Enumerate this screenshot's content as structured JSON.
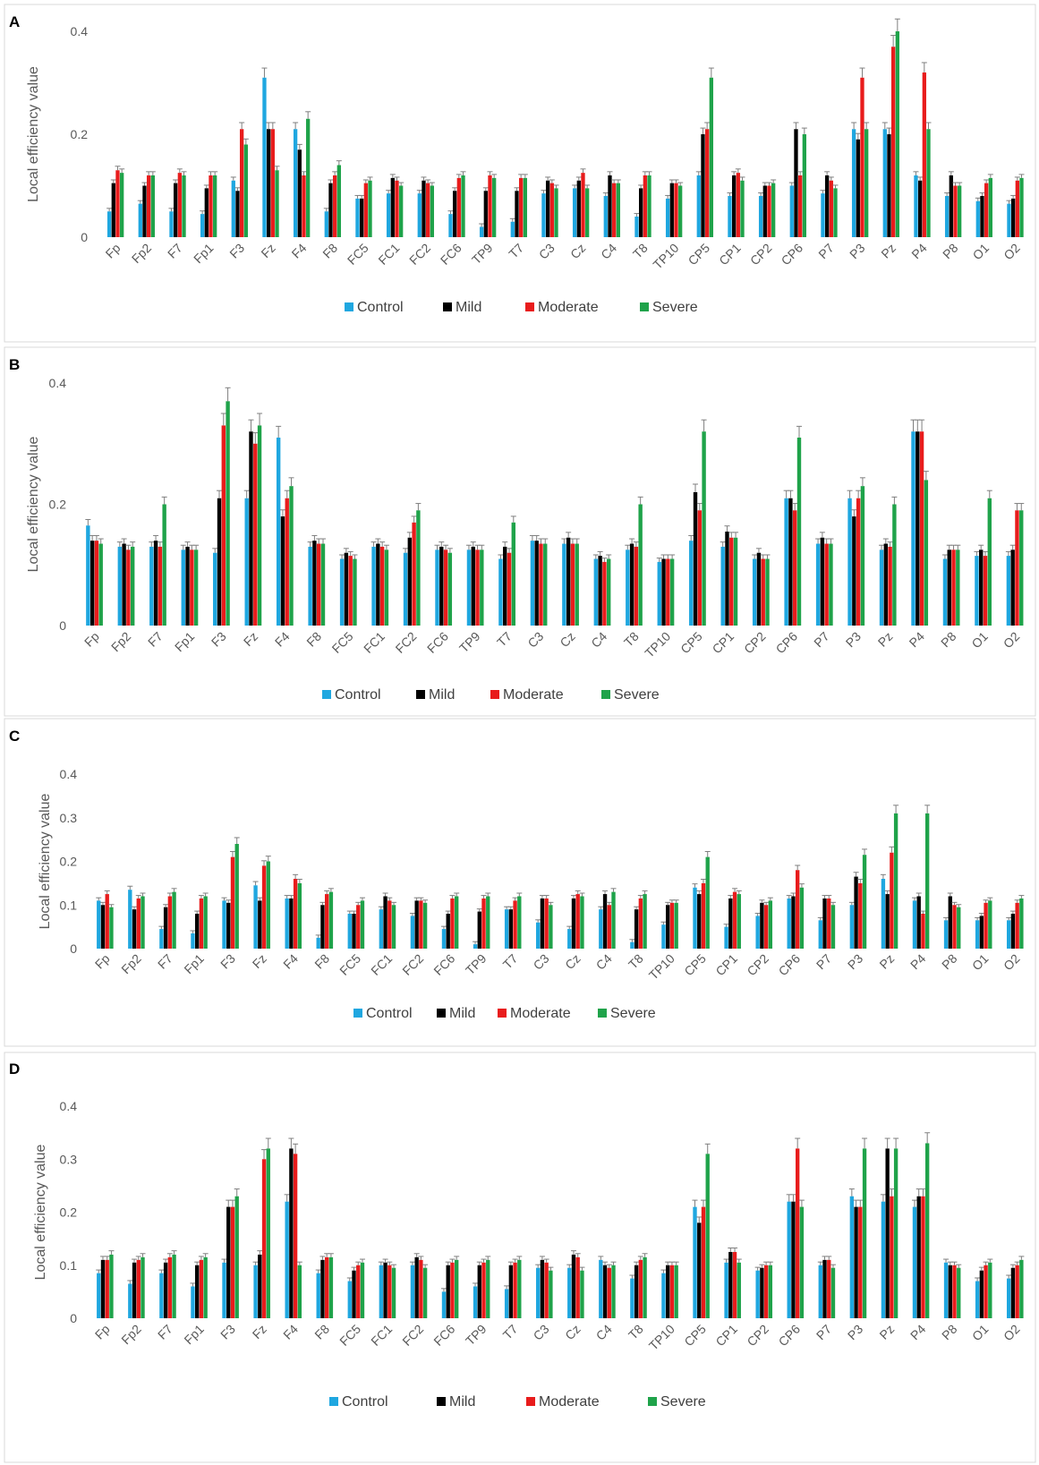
{
  "figure": {
    "legend": [
      "Control",
      "Mild",
      "Moderate",
      "Severe"
    ],
    "colors": {
      "Control": "#1fa7e0",
      "Mild": "#000000",
      "Moderate": "#e81c1c",
      "Severe": "#1fa34a"
    }
  },
  "chart_data": [
    {
      "type": "bar",
      "panel_letter": "A",
      "ylabel": "Local efficiency value",
      "ylim": [
        0,
        0.4
      ],
      "yticks": [
        "0",
        "0.2",
        "0.4"
      ],
      "categories": [
        "Fp",
        "Fp2",
        "F7",
        "Fp1",
        "F3",
        "Fz",
        "F4",
        "F8",
        "FC5",
        "FC1",
        "FC2",
        "FC6",
        "TP9",
        "T7",
        "C3",
        "Cz",
        "C4",
        "T8",
        "TP10",
        "CP5",
        "CP1",
        "CP2",
        "CP6",
        "P7",
        "P3",
        "Pz",
        "P4",
        "P8",
        "O1",
        "O2"
      ],
      "series": [
        {
          "name": "Control",
          "values": [
            0.05,
            0.065,
            0.05,
            0.045,
            0.11,
            0.31,
            0.21,
            0.05,
            0.075,
            0.085,
            0.085,
            0.045,
            0.02,
            0.03,
            0.085,
            0.095,
            0.08,
            0.04,
            0.075,
            0.12,
            0.08,
            0.08,
            0.1,
            0.085,
            0.21,
            0.21,
            0.12,
            0.08,
            0.07,
            0.065
          ]
        },
        {
          "name": "Mild",
          "values": [
            0.105,
            0.1,
            0.105,
            0.095,
            0.09,
            0.21,
            0.17,
            0.105,
            0.075,
            0.115,
            0.11,
            0.09,
            0.09,
            0.09,
            0.11,
            0.11,
            0.12,
            0.095,
            0.105,
            0.2,
            0.12,
            0.1,
            0.21,
            0.12,
            0.19,
            0.2,
            0.11,
            0.12,
            0.08,
            0.075
          ]
        },
        {
          "name": "Moderate",
          "values": [
            0.13,
            0.12,
            0.125,
            0.12,
            0.21,
            0.21,
            0.12,
            0.12,
            0.105,
            0.11,
            0.105,
            0.115,
            0.12,
            0.115,
            0.105,
            0.125,
            0.105,
            0.12,
            0.105,
            0.21,
            0.125,
            0.1,
            0.12,
            0.11,
            0.31,
            0.37,
            0.32,
            0.1,
            0.105,
            0.11
          ]
        },
        {
          "name": "Severe",
          "values": [
            0.125,
            0.12,
            0.12,
            0.12,
            0.18,
            0.13,
            0.23,
            0.14,
            0.11,
            0.1,
            0.1,
            0.12,
            0.115,
            0.115,
            0.095,
            0.095,
            0.105,
            0.12,
            0.1,
            0.31,
            0.11,
            0.105,
            0.2,
            0.095,
            0.21,
            0.4,
            0.21,
            0.1,
            0.115,
            0.115
          ]
        }
      ]
    },
    {
      "type": "bar",
      "panel_letter": "B",
      "ylabel": "Local efficiency value",
      "ylim": [
        0,
        0.4
      ],
      "yticks": [
        "0",
        "0.2",
        "0.4"
      ],
      "categories": [
        "Fp",
        "Fp2",
        "F7",
        "Fp1",
        "F3",
        "Fz",
        "F4",
        "F8",
        "FC5",
        "FC1",
        "FC2",
        "FC6",
        "TP9",
        "T7",
        "C3",
        "Cz",
        "C4",
        "T8",
        "TP10",
        "CP5",
        "CP1",
        "CP2",
        "CP6",
        "P7",
        "P3",
        "Pz",
        "P4",
        "P8",
        "O1",
        "O2"
      ],
      "series": [
        {
          "name": "Control",
          "values": [
            0.165,
            0.13,
            0.13,
            0.125,
            0.12,
            0.21,
            0.31,
            0.13,
            0.11,
            0.13,
            0.12,
            0.125,
            0.125,
            0.11,
            0.14,
            0.135,
            0.11,
            0.125,
            0.105,
            0.14,
            0.13,
            0.11,
            0.21,
            0.135,
            0.21,
            0.125,
            0.32,
            0.11,
            0.115,
            0.115
          ]
        },
        {
          "name": "Mild",
          "values": [
            0.14,
            0.135,
            0.14,
            0.13,
            0.21,
            0.32,
            0.18,
            0.14,
            0.12,
            0.135,
            0.145,
            0.13,
            0.13,
            0.13,
            0.14,
            0.145,
            0.115,
            0.135,
            0.11,
            0.22,
            0.155,
            0.12,
            0.21,
            0.145,
            0.18,
            0.135,
            0.32,
            0.125,
            0.125,
            0.125
          ]
        },
        {
          "name": "Moderate",
          "values": [
            0.14,
            0.125,
            0.13,
            0.125,
            0.33,
            0.3,
            0.21,
            0.135,
            0.115,
            0.13,
            0.17,
            0.125,
            0.125,
            0.12,
            0.135,
            0.135,
            0.105,
            0.13,
            0.11,
            0.19,
            0.145,
            0.11,
            0.19,
            0.135,
            0.21,
            0.13,
            0.32,
            0.125,
            0.115,
            0.19
          ]
        },
        {
          "name": "Severe",
          "values": [
            0.135,
            0.13,
            0.2,
            0.125,
            0.37,
            0.33,
            0.23,
            0.135,
            0.11,
            0.125,
            0.19,
            0.12,
            0.125,
            0.17,
            0.135,
            0.135,
            0.11,
            0.2,
            0.11,
            0.32,
            0.145,
            0.11,
            0.31,
            0.135,
            0.23,
            0.2,
            0.24,
            0.125,
            0.21,
            0.19
          ]
        }
      ]
    },
    {
      "type": "bar",
      "panel_letter": "C",
      "ylabel": "Local efficiency value",
      "ylim": [
        0,
        0.4
      ],
      "yticks": [
        "0",
        "0.1",
        "0.2",
        "0.3",
        "0.4"
      ],
      "categories": [
        "Fp",
        "Fp2",
        "F7",
        "Fp1",
        "F3",
        "Fz",
        "F4",
        "F8",
        "FC5",
        "FC1",
        "FC2",
        "FC6",
        "TP9",
        "T7",
        "C3",
        "Cz",
        "C4",
        "T8",
        "TP10",
        "CP5",
        "CP1",
        "CP2",
        "CP6",
        "P7",
        "P3",
        "Pz",
        "P4",
        "P8",
        "O1",
        "O2"
      ],
      "series": [
        {
          "name": "Control",
          "values": [
            0.11,
            0.135,
            0.045,
            0.035,
            0.11,
            0.145,
            0.115,
            0.025,
            0.08,
            0.09,
            0.075,
            0.045,
            0.01,
            0.09,
            0.06,
            0.045,
            0.09,
            0.015,
            0.055,
            0.14,
            0.05,
            0.075,
            0.115,
            0.065,
            0.1,
            0.16,
            0.11,
            0.065,
            0.065,
            0.065
          ]
        },
        {
          "name": "Mild",
          "values": [
            0.1,
            0.09,
            0.095,
            0.08,
            0.105,
            0.11,
            0.115,
            0.1,
            0.08,
            0.12,
            0.11,
            0.08,
            0.085,
            0.09,
            0.115,
            0.115,
            0.125,
            0.09,
            0.1,
            0.125,
            0.115,
            0.105,
            0.12,
            0.115,
            0.165,
            0.125,
            0.12,
            0.12,
            0.075,
            0.08
          ]
        },
        {
          "name": "Moderate",
          "values": [
            0.125,
            0.115,
            0.12,
            0.115,
            0.21,
            0.19,
            0.16,
            0.125,
            0.1,
            0.11,
            0.11,
            0.115,
            0.115,
            0.11,
            0.115,
            0.125,
            0.1,
            0.115,
            0.105,
            0.15,
            0.13,
            0.1,
            0.18,
            0.115,
            0.15,
            0.22,
            0.08,
            0.1,
            0.105,
            0.105
          ]
        },
        {
          "name": "Severe",
          "values": [
            0.095,
            0.12,
            0.13,
            0.12,
            0.24,
            0.2,
            0.15,
            0.13,
            0.11,
            0.1,
            0.105,
            0.12,
            0.12,
            0.12,
            0.1,
            0.12,
            0.13,
            0.125,
            0.105,
            0.21,
            0.125,
            0.11,
            0.14,
            0.1,
            0.215,
            0.31,
            0.31,
            0.095,
            0.11,
            0.115
          ]
        }
      ]
    },
    {
      "type": "bar",
      "panel_letter": "D",
      "ylabel": "Local efficiency value",
      "ylim": [
        0,
        0.4
      ],
      "yticks": [
        "0",
        "0.1",
        "0.2",
        "0.3",
        "0.4"
      ],
      "categories": [
        "Fp",
        "Fp2",
        "F7",
        "Fp1",
        "F3",
        "Fz",
        "F4",
        "F8",
        "FC5",
        "FC1",
        "FC2",
        "FC6",
        "TP9",
        "T7",
        "C3",
        "Cz",
        "C4",
        "T8",
        "TP10",
        "CP5",
        "CP1",
        "CP2",
        "CP6",
        "P7",
        "P3",
        "Pz",
        "P4",
        "P8",
        "O1",
        "O2"
      ],
      "series": [
        {
          "name": "Control",
          "values": [
            0.085,
            0.065,
            0.085,
            0.06,
            0.105,
            0.1,
            0.22,
            0.085,
            0.07,
            0.1,
            0.1,
            0.05,
            0.06,
            0.055,
            0.095,
            0.095,
            0.11,
            0.075,
            0.085,
            0.21,
            0.105,
            0.09,
            0.22,
            0.1,
            0.23,
            0.22,
            0.21,
            0.105,
            0.07,
            0.075
          ]
        },
        {
          "name": "Mild",
          "values": [
            0.11,
            0.105,
            0.105,
            0.1,
            0.21,
            0.12,
            0.32,
            0.11,
            0.09,
            0.105,
            0.115,
            0.1,
            0.1,
            0.1,
            0.11,
            0.12,
            0.1,
            0.1,
            0.1,
            0.18,
            0.125,
            0.095,
            0.22,
            0.11,
            0.21,
            0.32,
            0.23,
            0.1,
            0.09,
            0.095
          ]
        },
        {
          "name": "Moderate",
          "values": [
            0.11,
            0.11,
            0.115,
            0.11,
            0.21,
            0.3,
            0.31,
            0.115,
            0.1,
            0.1,
            0.11,
            0.105,
            0.105,
            0.105,
            0.105,
            0.115,
            0.095,
            0.11,
            0.1,
            0.21,
            0.125,
            0.1,
            0.32,
            0.11,
            0.21,
            0.23,
            0.23,
            0.1,
            0.1,
            0.1
          ]
        },
        {
          "name": "Severe",
          "values": [
            0.12,
            0.115,
            0.12,
            0.115,
            0.23,
            0.32,
            0.1,
            0.115,
            0.105,
            0.095,
            0.095,
            0.11,
            0.11,
            0.11,
            0.09,
            0.09,
            0.1,
            0.115,
            0.1,
            0.31,
            0.105,
            0.1,
            0.21,
            0.095,
            0.32,
            0.32,
            0.33,
            0.095,
            0.105,
            0.11
          ]
        }
      ]
    }
  ]
}
